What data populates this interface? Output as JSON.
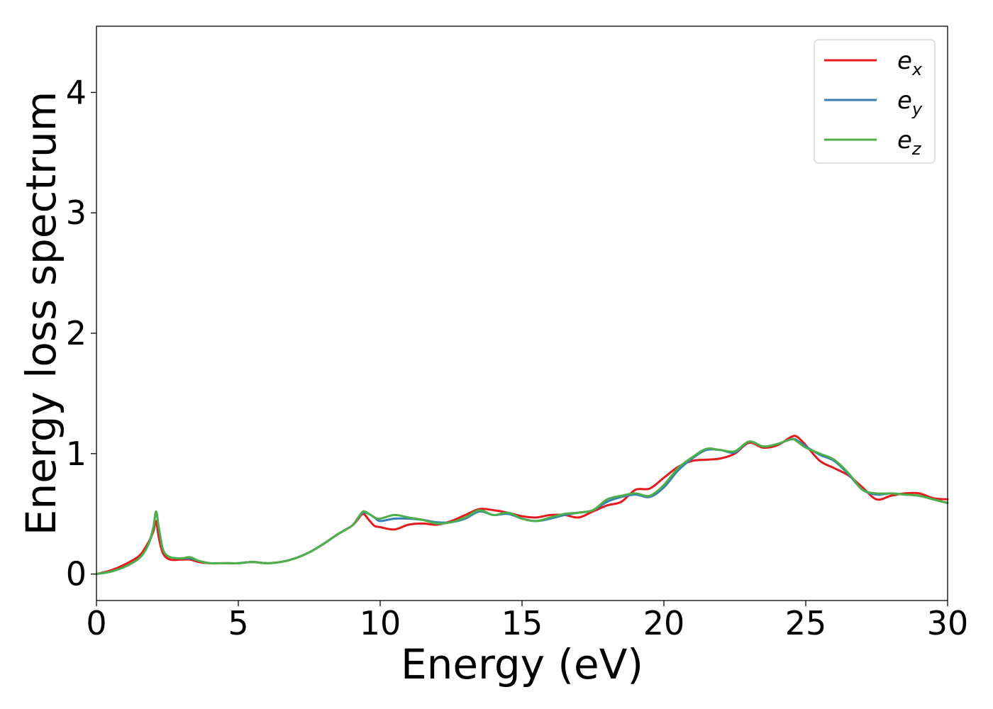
{
  "chart_data": {
    "type": "line",
    "title": "",
    "xlabel": "Energy (eV)",
    "ylabel": "Energy loss spectrum",
    "xlim": [
      0,
      30
    ],
    "ylim": [
      -0.22,
      4.55
    ],
    "xticks": [
      0,
      5,
      10,
      15,
      20,
      25,
      30
    ],
    "yticks": [
      0,
      1,
      2,
      3,
      4
    ],
    "grid": false,
    "legend_position": "top-right",
    "series": [
      {
        "name": "e_x",
        "legend_base": "e",
        "legend_sub": "x",
        "color": "#e41a1c",
        "x": [
          0,
          0.5,
          1,
          1.5,
          1.8,
          2.0,
          2.1,
          2.2,
          2.35,
          2.6,
          3,
          3.3,
          3.6,
          4,
          4.5,
          5,
          5.5,
          6,
          6.5,
          7,
          7.5,
          8,
          8.5,
          9,
          9.2,
          9.4,
          9.6,
          9.8,
          10,
          10.5,
          11,
          11.5,
          12,
          12.5,
          13,
          13.5,
          14,
          14.5,
          15,
          15.5,
          16,
          16.5,
          17,
          17.5,
          18,
          18.5,
          19,
          19.5,
          20,
          20.5,
          21,
          21.5,
          22,
          22.5,
          23,
          23.5,
          24,
          24.5,
          24.7,
          25,
          25.5,
          26,
          26.5,
          27,
          27.5,
          28,
          28.5,
          29,
          29.5,
          30
        ],
        "y": [
          0,
          0.03,
          0.08,
          0.15,
          0.25,
          0.35,
          0.44,
          0.3,
          0.17,
          0.12,
          0.12,
          0.12,
          0.1,
          0.09,
          0.09,
          0.09,
          0.1,
          0.09,
          0.1,
          0.13,
          0.18,
          0.25,
          0.33,
          0.4,
          0.45,
          0.5,
          0.45,
          0.4,
          0.39,
          0.37,
          0.41,
          0.42,
          0.41,
          0.44,
          0.49,
          0.54,
          0.53,
          0.51,
          0.48,
          0.47,
          0.49,
          0.49,
          0.47,
          0.52,
          0.57,
          0.6,
          0.7,
          0.71,
          0.8,
          0.89,
          0.94,
          0.95,
          0.96,
          1.0,
          1.09,
          1.05,
          1.07,
          1.14,
          1.14,
          1.07,
          0.94,
          0.88,
          0.82,
          0.72,
          0.62,
          0.65,
          0.67,
          0.67,
          0.63,
          0.62
        ]
      },
      {
        "name": "e_y",
        "legend_base": "e",
        "legend_sub": "y",
        "color": "#377eb8",
        "x": [
          0,
          0.5,
          1,
          1.5,
          1.8,
          2.0,
          2.1,
          2.2,
          2.35,
          2.6,
          3,
          3.3,
          3.6,
          4,
          4.5,
          5,
          5.5,
          6,
          6.5,
          7,
          7.5,
          8,
          8.5,
          9,
          9.2,
          9.4,
          9.6,
          9.8,
          10,
          10.5,
          11,
          11.5,
          12,
          12.5,
          13,
          13.5,
          14,
          14.5,
          15,
          15.5,
          16,
          16.5,
          17,
          17.5,
          18,
          18.5,
          19,
          19.5,
          20,
          20.5,
          21,
          21.5,
          22,
          22.5,
          23,
          23.5,
          24,
          24.5,
          24.7,
          25,
          25.5,
          26,
          26.5,
          27,
          27.5,
          28,
          28.5,
          29,
          29.5,
          30
        ],
        "y": [
          0,
          0.02,
          0.06,
          0.13,
          0.23,
          0.38,
          0.52,
          0.38,
          0.2,
          0.14,
          0.13,
          0.13,
          0.11,
          0.09,
          0.09,
          0.09,
          0.1,
          0.09,
          0.1,
          0.13,
          0.18,
          0.25,
          0.33,
          0.4,
          0.46,
          0.51,
          0.5,
          0.47,
          0.44,
          0.46,
          0.46,
          0.45,
          0.43,
          0.43,
          0.46,
          0.52,
          0.49,
          0.5,
          0.46,
          0.44,
          0.46,
          0.49,
          0.51,
          0.53,
          0.6,
          0.64,
          0.66,
          0.64,
          0.72,
          0.86,
          0.96,
          1.03,
          1.03,
          1.01,
          1.1,
          1.06,
          1.08,
          1.12,
          1.11,
          1.06,
          0.99,
          0.94,
          0.83,
          0.7,
          0.66,
          0.67,
          0.66,
          0.65,
          0.62,
          0.59
        ]
      },
      {
        "name": "e_z",
        "legend_base": "e",
        "legend_sub": "z",
        "color": "#4daf4a",
        "x": [
          0,
          0.5,
          1,
          1.5,
          1.8,
          2.0,
          2.1,
          2.2,
          2.35,
          2.6,
          3,
          3.3,
          3.6,
          4,
          4.5,
          5,
          5.5,
          6,
          6.5,
          7,
          7.5,
          8,
          8.5,
          9,
          9.2,
          9.4,
          9.6,
          9.8,
          10,
          10.5,
          11,
          11.5,
          12,
          12.5,
          13,
          13.5,
          14,
          14.5,
          15,
          15.5,
          16,
          16.5,
          17,
          17.5,
          18,
          18.5,
          19,
          19.5,
          20,
          20.5,
          21,
          21.5,
          22,
          22.5,
          23,
          23.5,
          24,
          24.5,
          24.7,
          25,
          25.5,
          26,
          26.5,
          27,
          27.5,
          28,
          28.5,
          29,
          29.5,
          30
        ],
        "y": [
          0,
          0.02,
          0.06,
          0.13,
          0.23,
          0.38,
          0.52,
          0.38,
          0.2,
          0.14,
          0.13,
          0.14,
          0.11,
          0.09,
          0.09,
          0.09,
          0.1,
          0.09,
          0.1,
          0.13,
          0.18,
          0.25,
          0.33,
          0.4,
          0.46,
          0.52,
          0.5,
          0.47,
          0.46,
          0.49,
          0.47,
          0.45,
          0.42,
          0.43,
          0.47,
          0.53,
          0.49,
          0.51,
          0.46,
          0.44,
          0.47,
          0.5,
          0.51,
          0.53,
          0.62,
          0.65,
          0.67,
          0.65,
          0.74,
          0.88,
          0.97,
          1.04,
          1.03,
          1.02,
          1.1,
          1.06,
          1.08,
          1.12,
          1.1,
          1.05,
          1.0,
          0.95,
          0.84,
          0.7,
          0.67,
          0.67,
          0.66,
          0.65,
          0.62,
          0.59
        ]
      }
    ]
  }
}
